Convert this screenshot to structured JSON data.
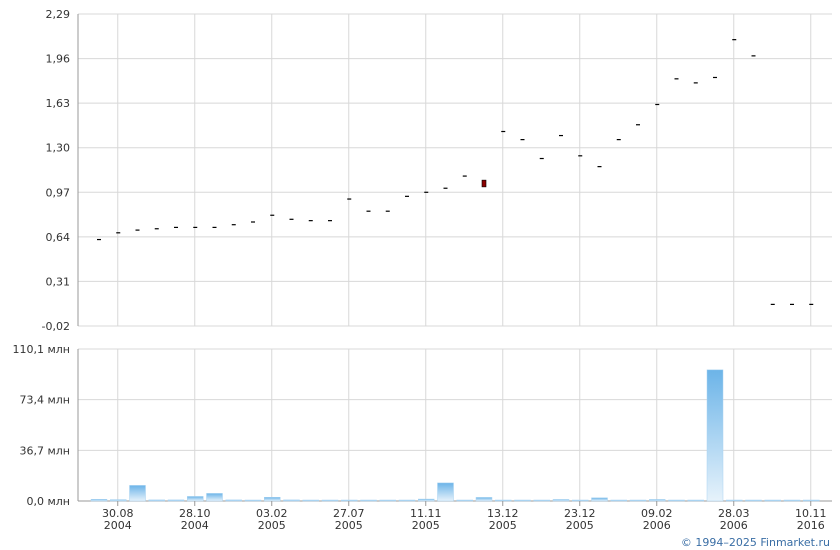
{
  "chart_data": [
    {
      "type": "candlestick",
      "y_ticks": [
        "2,29",
        "1,96",
        "1,63",
        "1,30",
        "0,97",
        "0,64",
        "0,31",
        "-0,02"
      ],
      "ylim": [
        -0.02,
        2.29
      ],
      "grid": true,
      "up_color": "#000000",
      "down_color": "#8b0000",
      "points": [
        {
          "close": 0.62
        },
        {
          "close": 0.67
        },
        {
          "close": 0.69
        },
        {
          "close": 0.7
        },
        {
          "close": 0.71
        },
        {
          "close": 0.71
        },
        {
          "close": 0.71
        },
        {
          "close": 0.73
        },
        {
          "close": 0.75
        },
        {
          "close": 0.8
        },
        {
          "close": 0.77
        },
        {
          "close": 0.76
        },
        {
          "close": 0.76
        },
        {
          "close": 0.92
        },
        {
          "close": 0.83
        },
        {
          "close": 0.83
        },
        {
          "close": 0.94
        },
        {
          "close": 0.97
        },
        {
          "close": 1.0
        },
        {
          "close": 1.09
        },
        {
          "close": 1.06,
          "open": 1.01,
          "down": true
        },
        {
          "close": 1.42
        },
        {
          "close": 1.36
        },
        {
          "close": 1.22
        },
        {
          "close": 1.39
        },
        {
          "close": 1.24
        },
        {
          "close": 1.16
        },
        {
          "close": 1.36
        },
        {
          "close": 1.47
        },
        {
          "close": 1.62
        },
        {
          "close": 1.81
        },
        {
          "close": 1.78
        },
        {
          "close": 1.82
        },
        {
          "close": 2.1
        },
        {
          "close": 1.98
        },
        {
          "close": 0.14
        },
        {
          "close": 0.14
        },
        {
          "close": 0.14
        }
      ]
    },
    {
      "type": "bar",
      "y_ticks": [
        "110,1 млн",
        "73,4 млн",
        "36,7 млн",
        "0,0 млн"
      ],
      "ylim": [
        0,
        110.1
      ],
      "unit": "млн",
      "grid": true,
      "bar_color_top": "#6cb4e8",
      "bar_color_bottom": "#e6f2fb",
      "values": [
        1.2,
        1.0,
        11.3,
        0.8,
        0.8,
        3.3,
        5.5,
        0.8,
        0.7,
        2.7,
        0.8,
        0.7,
        0.7,
        0.7,
        0.7,
        0.7,
        0.7,
        1.4,
        13.1,
        0.7,
        2.6,
        0.7,
        0.7,
        0.7,
        1.1,
        0.7,
        2.3,
        0.7,
        0.7,
        1.1,
        0.7,
        0.7,
        95.0,
        0.7,
        0.7,
        0.7,
        0.7,
        0.7
      ]
    }
  ],
  "x_ticks": [
    {
      "top": "30.08",
      "bottom": "2004"
    },
    {
      "top": "28.10",
      "bottom": "2004"
    },
    {
      "top": "03.02",
      "bottom": "2005"
    },
    {
      "top": "27.07",
      "bottom": "2005"
    },
    {
      "top": "11.11",
      "bottom": "2005"
    },
    {
      "top": "13.12",
      "bottom": "2005"
    },
    {
      "top": "23.12",
      "bottom": "2005"
    },
    {
      "top": "09.02",
      "bottom": "2006"
    },
    {
      "top": "28.03",
      "bottom": "2006"
    },
    {
      "top": "10.11",
      "bottom": "2016"
    }
  ],
  "credit": "© 1994–2025 Finmarket.ru",
  "colors": {
    "grid": "#d8d8d8",
    "axis": "#999999"
  }
}
